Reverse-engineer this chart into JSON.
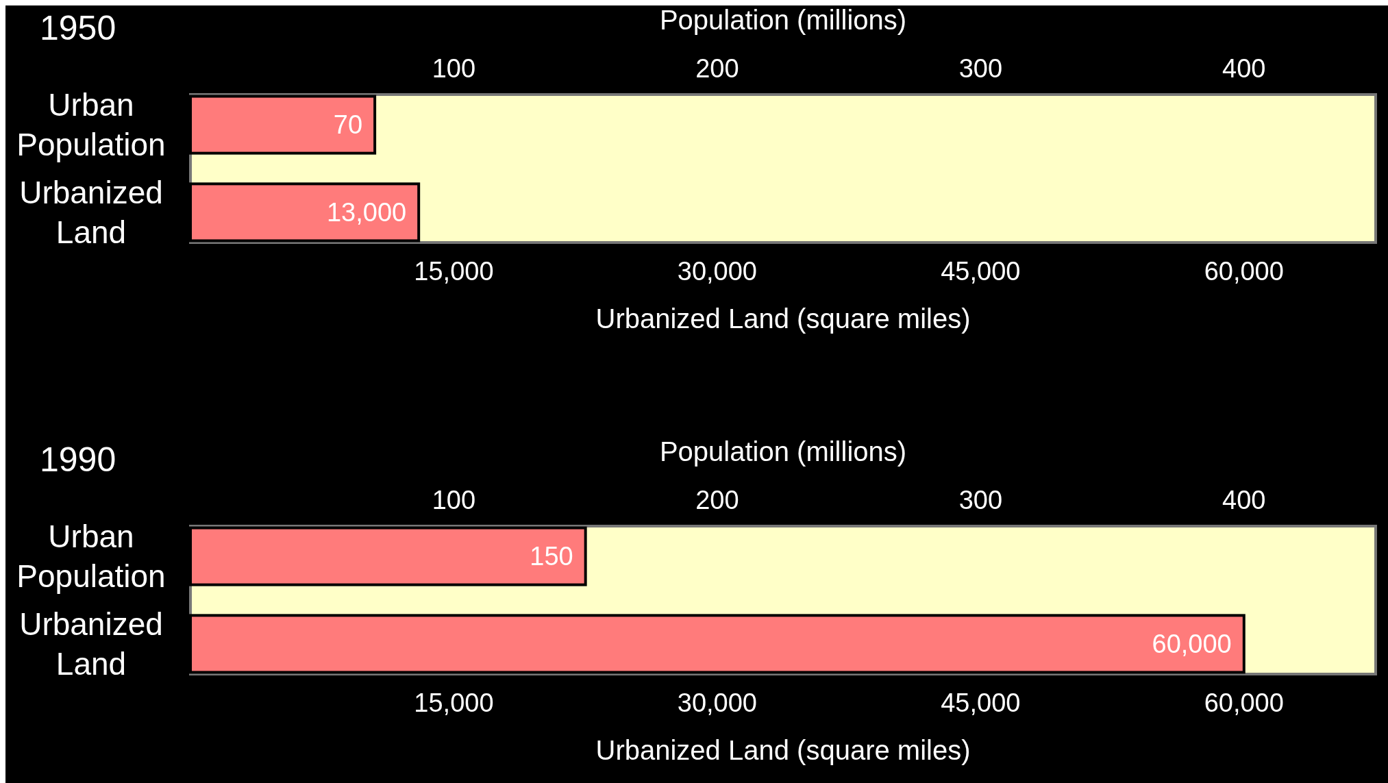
{
  "chart_data": [
    {
      "type": "bar",
      "orientation": "horizontal",
      "title": "1950",
      "categories": [
        "Urban Population",
        "Urbanized Land"
      ],
      "series": [
        {
          "color": "#ff7b7b",
          "values": [
            70,
            null
          ],
          "value_labels": [
            "70",
            null
          ],
          "axis": "x2"
        },
        {
          "color": "#ff7b7b",
          "values": [
            null,
            13000
          ],
          "value_labels": [
            null,
            "13,000"
          ]
        }
      ],
      "x2label": "Population (millions)",
      "x2lim": [
        0,
        450
      ],
      "x2ticks": [
        100,
        200,
        300,
        400
      ],
      "xlabel": "Urbanized Land (square miles)",
      "xlim": [
        0,
        67500
      ],
      "xticks": [
        {
          "value": 15000,
          "label": "15,000"
        },
        {
          "value": 30000,
          "label": "30,000"
        },
        {
          "value": 45000,
          "label": "45,000"
        },
        {
          "value": 60000,
          "label": "60,000"
        }
      ],
      "grid": false
    },
    {
      "type": "bar",
      "orientation": "horizontal",
      "title": "1990",
      "categories": [
        "Urban Population",
        "Urbanized Land"
      ],
      "series": [
        {
          "color": "#ff7b7b",
          "values": [
            150,
            null
          ],
          "value_labels": [
            "150",
            null
          ],
          "axis": "x2"
        },
        {
          "color": "#ff7b7b",
          "values": [
            null,
            60000
          ],
          "value_labels": [
            null,
            "60,000"
          ]
        }
      ],
      "x2label": "Population (millions)",
      "x2lim": [
        0,
        450
      ],
      "x2ticks": [
        100,
        200,
        300,
        400
      ],
      "xlabel": "Urbanized Land (square miles)",
      "xlim": [
        0,
        67500
      ],
      "xticks": [
        {
          "value": 15000,
          "label": "15,000"
        },
        {
          "value": 30000,
          "label": "30,000"
        },
        {
          "value": 45000,
          "label": "45,000"
        },
        {
          "value": 60000,
          "label": "60,000"
        }
      ],
      "grid": false
    }
  ]
}
